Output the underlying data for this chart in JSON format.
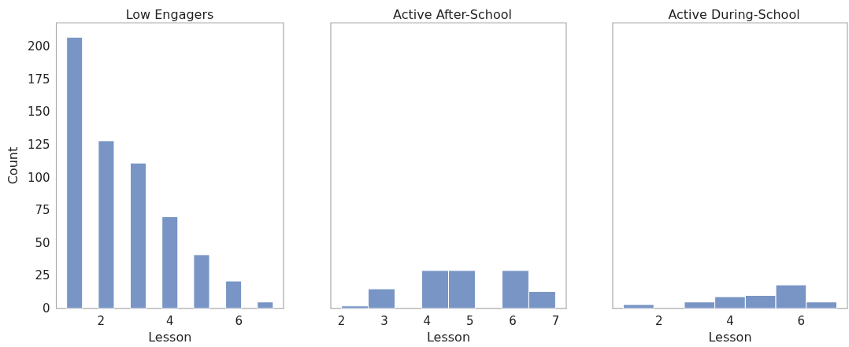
{
  "chart_data": [
    {
      "type": "histogram",
      "title": "Low Engagers",
      "xlabel": "Lesson",
      "ylabel": "Count",
      "color": "#7895c5",
      "bins": [
        1,
        1.46,
        1.92,
        2.38,
        2.85,
        3.31,
        3.77,
        4.23,
        4.69,
        5.15,
        5.62,
        6.08,
        6.54,
        7
      ],
      "values": [
        207,
        0,
        128,
        0,
        111,
        0,
        70,
        0,
        41,
        0,
        21,
        0,
        5
      ],
      "xlim": [
        0.7,
        7.3
      ],
      "xticks": [
        2,
        4,
        6
      ],
      "ylim": [
        0,
        218
      ],
      "yticks": [
        0,
        25,
        50,
        75,
        100,
        125,
        150,
        175,
        200
      ]
    },
    {
      "type": "histogram",
      "title": "Active After-School",
      "xlabel": "Lesson",
      "color": "#7895c5",
      "bins": [
        2,
        2.625,
        3.25,
        3.875,
        4.5,
        5.125,
        5.75,
        6.375,
        7
      ],
      "values": [
        2,
        15,
        0,
        29,
        29,
        0,
        29,
        13
      ],
      "xlim": [
        1.75,
        7.25
      ],
      "xticks": [
        2,
        3,
        4,
        5,
        6,
        7
      ],
      "ylim": [
        0,
        218
      ],
      "tick_labels": "x"
    },
    {
      "type": "histogram",
      "title": "Active During-School",
      "xlabel": "Lesson",
      "color": "#7895c5",
      "bins": [
        1,
        1.857,
        2.714,
        3.571,
        4.429,
        5.286,
        6.143,
        7
      ],
      "values": [
        3,
        0,
        5,
        9,
        10,
        18,
        5
      ],
      "xlim": [
        0.7,
        7.3
      ],
      "xticks": [
        2,
        4,
        6
      ],
      "ylim": [
        0,
        218
      ],
      "tick_labels": "x"
    }
  ]
}
